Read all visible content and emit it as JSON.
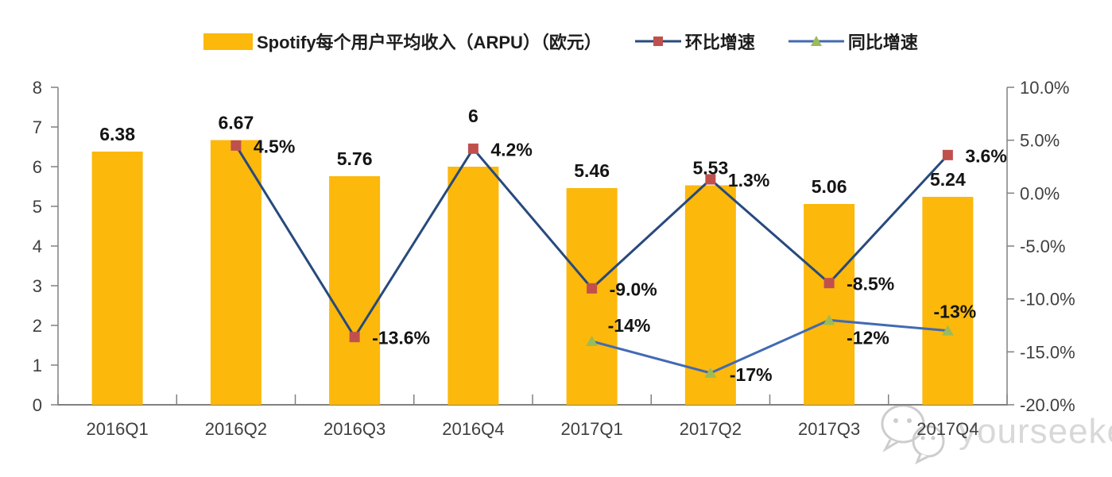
{
  "legend": [
    {
      "id": "arpu",
      "label": "Spotify每个用户平均收入（ARPU）（欧元）",
      "swatch": "bar",
      "color": "#FCB80B"
    },
    {
      "id": "qoq",
      "label": "环比增速",
      "swatch": "line-square",
      "line_color": "#274A7D",
      "marker_color": "#C0504D"
    },
    {
      "id": "yoy",
      "label": "同比增速",
      "swatch": "line-triangle",
      "line_color": "#426AB3",
      "marker_color": "#9BBB59"
    }
  ],
  "watermark": {
    "icon": "wechat-icon",
    "text": "yourseeker",
    "color": "#D8D8D8"
  },
  "chart_data": {
    "type": "bar+line",
    "title": "Spotify每个用户平均收入（ARPU）（欧元）",
    "categories": [
      "2016Q1",
      "2016Q2",
      "2016Q3",
      "2016Q4",
      "2017Q1",
      "2017Q2",
      "2017Q3",
      "2017Q4"
    ],
    "bar_series": {
      "name": "Spotify每个用户平均收入（ARPU）（欧元）",
      "axis": "left",
      "color": "#FCB80B",
      "values": [
        6.38,
        6.67,
        5.76,
        6,
        5.46,
        5.53,
        5.06,
        5.24
      ],
      "labels": [
        "6.38",
        "6.67",
        "5.76",
        "6",
        "5.46",
        "5.53",
        "5.06",
        "5.24"
      ]
    },
    "line_series": [
      {
        "name": "环比增速",
        "axis": "right",
        "line_color": "#274A7D",
        "marker": "square",
        "marker_color": "#C0504D",
        "start_index": 1,
        "values": [
          4.5,
          -13.6,
          4.2,
          -9.0,
          1.3,
          -8.5,
          3.6
        ],
        "labels": [
          "4.5%",
          "-13.6%",
          "4.2%",
          "-9.0%",
          "1.3%",
          "-8.5%",
          "3.6%"
        ]
      },
      {
        "name": "同比增速",
        "axis": "right",
        "line_color": "#426AB3",
        "marker": "triangle",
        "marker_color": "#9BBB59",
        "start_index": 4,
        "values": [
          -14,
          -17,
          -12,
          -13
        ],
        "labels": [
          "-14%",
          "-17%",
          "-12%",
          "-13%"
        ]
      }
    ],
    "left_axis": {
      "min": 0,
      "max": 8,
      "step": 1,
      "ticks": [
        "8",
        "7",
        "6",
        "5",
        "4",
        "3",
        "2",
        "1",
        "0"
      ]
    },
    "right_axis": {
      "min": -20,
      "max": 10,
      "step": 5,
      "ticks": [
        "10.0%",
        "5.0%",
        "0.0%",
        "-5.0%",
        "-10.0%",
        "-15.0%",
        "-20.0%"
      ]
    },
    "grid": false,
    "legend_position": "top",
    "style": {
      "axis_color": "#808080",
      "tick_label_color": "#3f3f3f",
      "data_label_color": "#141414"
    }
  }
}
